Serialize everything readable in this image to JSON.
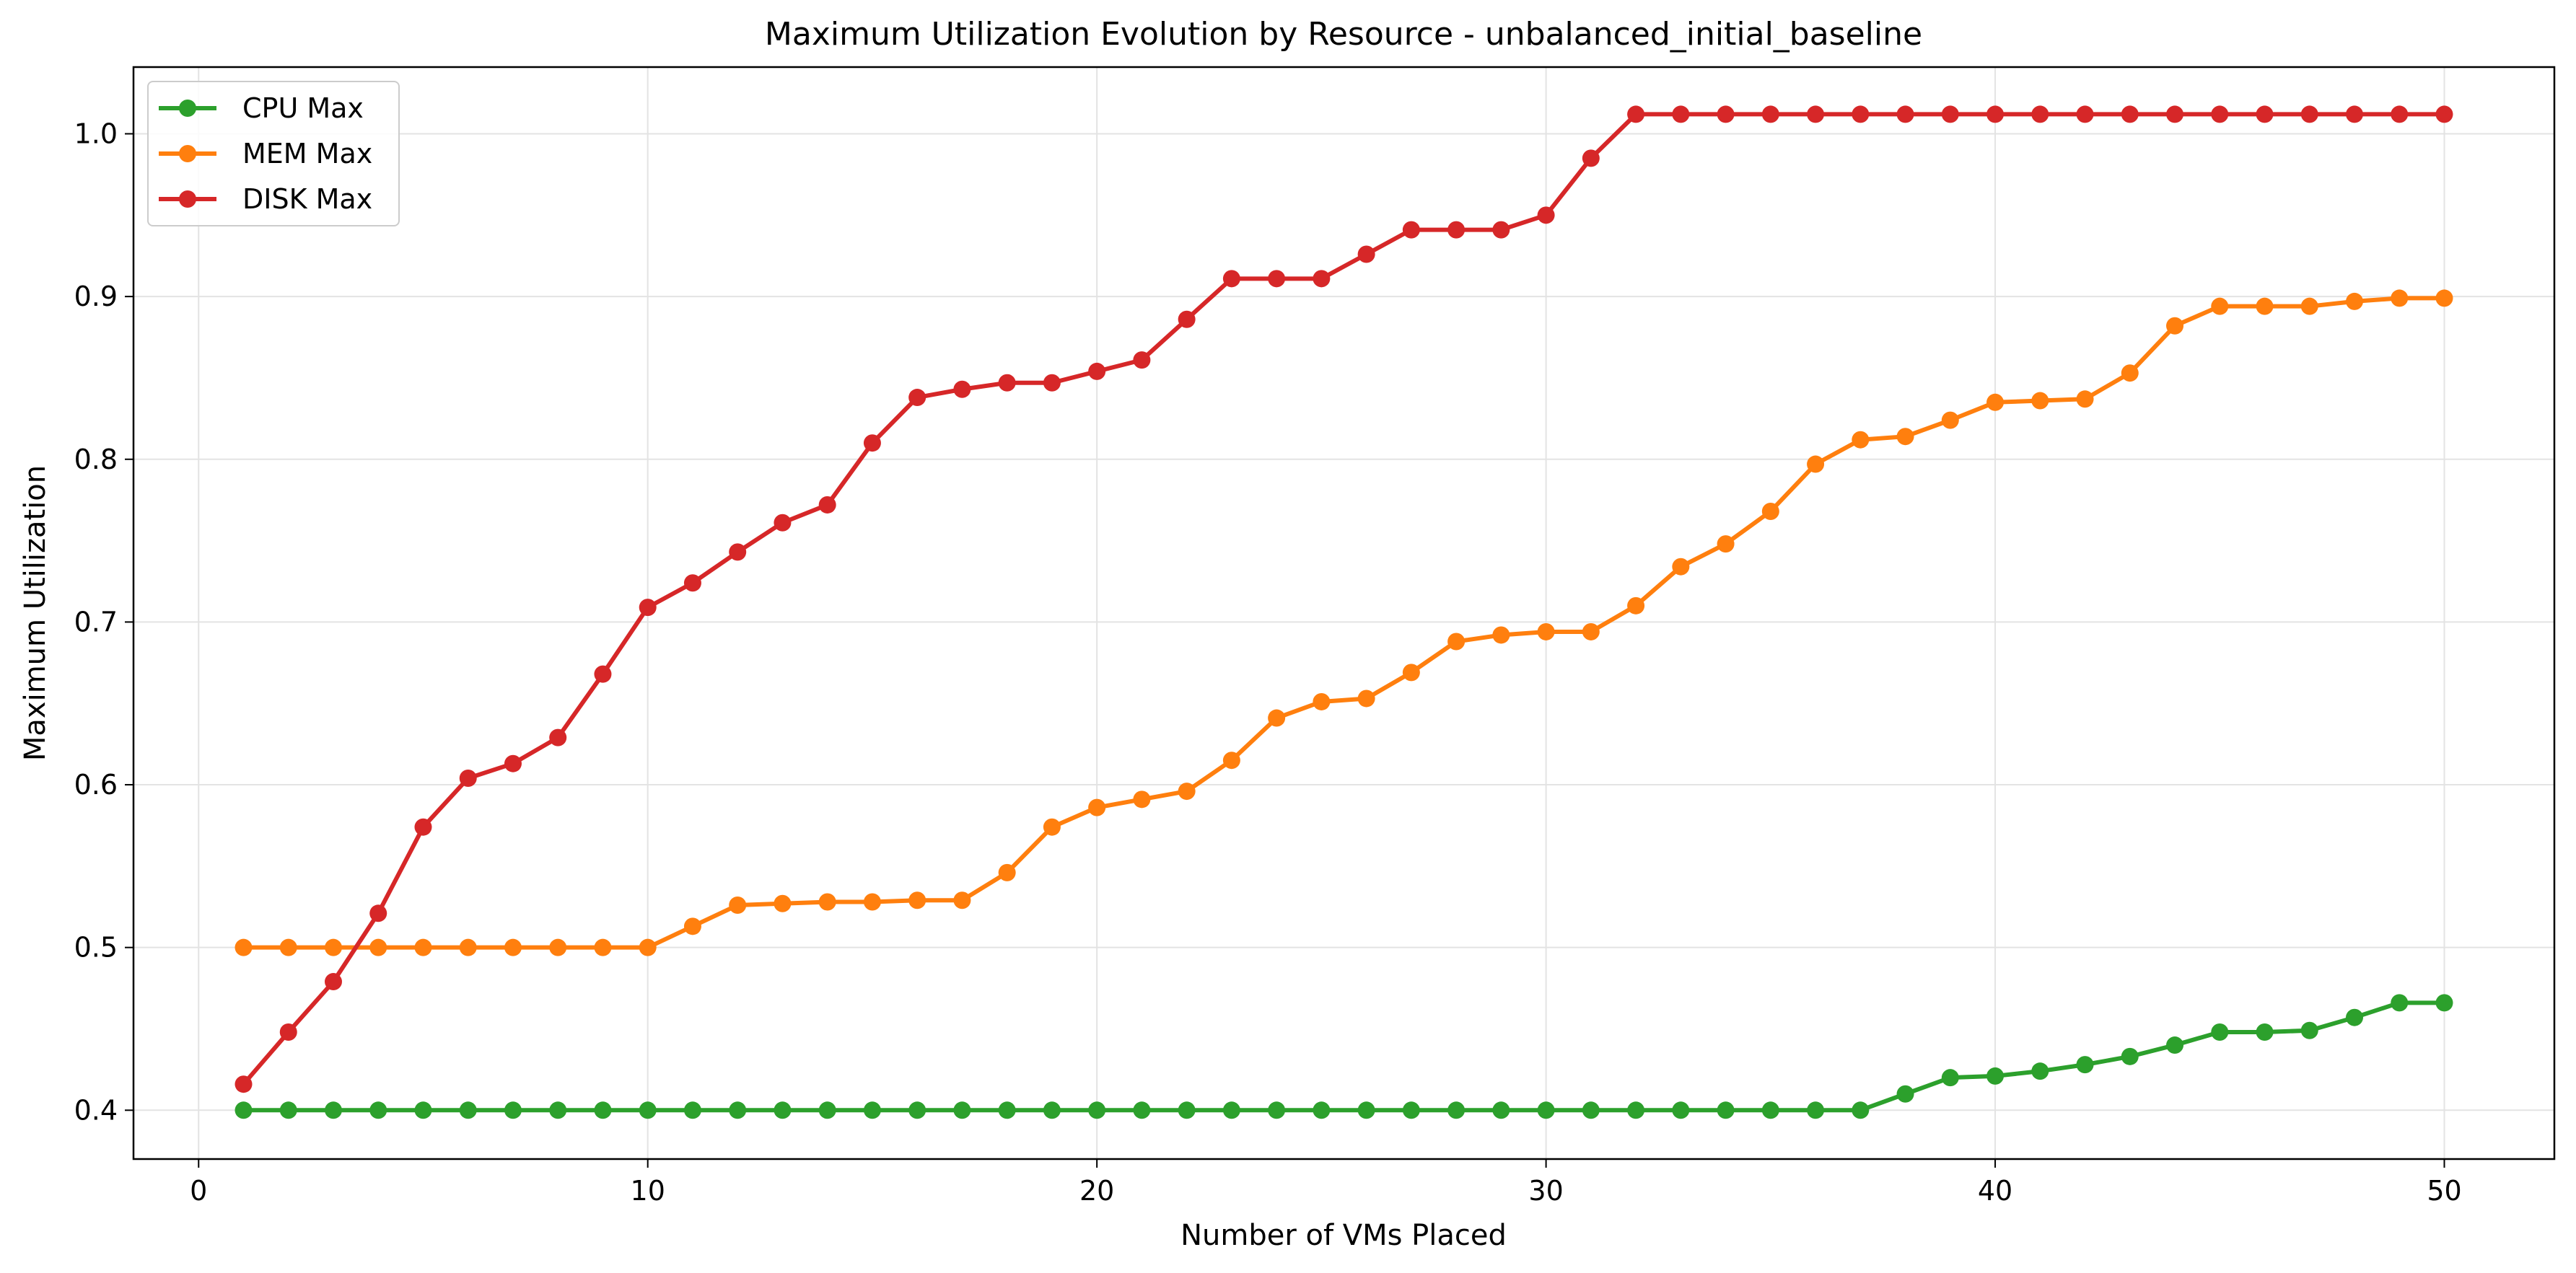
{
  "chart_data": {
    "type": "line",
    "title": "Maximum Utilization Evolution by Resource - unbalanced_initial_baseline",
    "xlabel": "Number of VMs Placed",
    "ylabel": "Maximum Utilization",
    "xlim": [
      -1.45,
      52.45
    ],
    "ylim": [
      0.37,
      1.041
    ],
    "xticks": [
      0,
      10,
      20,
      30,
      40,
      50
    ],
    "yticks": [
      0.4,
      0.5,
      0.6,
      0.7,
      0.8,
      0.9,
      1.0
    ],
    "grid": true,
    "legend_position": "top-left",
    "x": [
      1,
      2,
      3,
      4,
      5,
      6,
      7,
      8,
      9,
      10,
      11,
      12,
      13,
      14,
      15,
      16,
      17,
      18,
      19,
      20,
      21,
      22,
      23,
      24,
      25,
      26,
      27,
      28,
      29,
      30,
      31,
      32,
      33,
      34,
      35,
      36,
      37,
      38,
      39,
      40,
      41,
      42,
      43,
      44,
      45,
      46,
      47,
      48,
      49,
      50
    ],
    "series": [
      {
        "name": "CPU Max",
        "color": "#2ca02c",
        "values": [
          0.4,
          0.4,
          0.4,
          0.4,
          0.4,
          0.4,
          0.4,
          0.4,
          0.4,
          0.4,
          0.4,
          0.4,
          0.4,
          0.4,
          0.4,
          0.4,
          0.4,
          0.4,
          0.4,
          0.4,
          0.4,
          0.4,
          0.4,
          0.4,
          0.4,
          0.4,
          0.4,
          0.4,
          0.4,
          0.4,
          0.4,
          0.4,
          0.4,
          0.4,
          0.4,
          0.4,
          0.4,
          0.41,
          0.42,
          0.421,
          0.424,
          0.428,
          0.433,
          0.44,
          0.448,
          0.448,
          0.449,
          0.457,
          0.466,
          0.466
        ]
      },
      {
        "name": "MEM Max",
        "color": "#ff7f0e",
        "values": [
          0.5,
          0.5,
          0.5,
          0.5,
          0.5,
          0.5,
          0.5,
          0.5,
          0.5,
          0.5,
          0.513,
          0.526,
          0.527,
          0.528,
          0.528,
          0.529,
          0.529,
          0.546,
          0.574,
          0.586,
          0.591,
          0.596,
          0.615,
          0.641,
          0.651,
          0.653,
          0.669,
          0.688,
          0.692,
          0.694,
          0.694,
          0.71,
          0.734,
          0.748,
          0.768,
          0.797,
          0.812,
          0.814,
          0.824,
          0.835,
          0.836,
          0.837,
          0.853,
          0.882,
          0.894,
          0.894,
          0.894,
          0.897,
          0.899,
          0.899
        ]
      },
      {
        "name": "DISK Max",
        "color": "#d62728",
        "values": [
          0.416,
          0.448,
          0.479,
          0.521,
          0.574,
          0.604,
          0.613,
          0.629,
          0.668,
          0.709,
          0.724,
          0.743,
          0.761,
          0.772,
          0.81,
          0.838,
          0.843,
          0.847,
          0.847,
          0.854,
          0.861,
          0.886,
          0.911,
          0.911,
          0.911,
          0.926,
          0.941,
          0.941,
          0.941,
          0.95,
          0.985,
          1.012,
          1.012,
          1.012,
          1.012,
          1.012,
          1.012,
          1.012,
          1.012,
          1.012,
          1.012,
          1.012,
          1.012,
          1.012,
          1.012,
          1.012,
          1.012,
          1.012,
          1.012,
          1.012
        ]
      }
    ]
  }
}
